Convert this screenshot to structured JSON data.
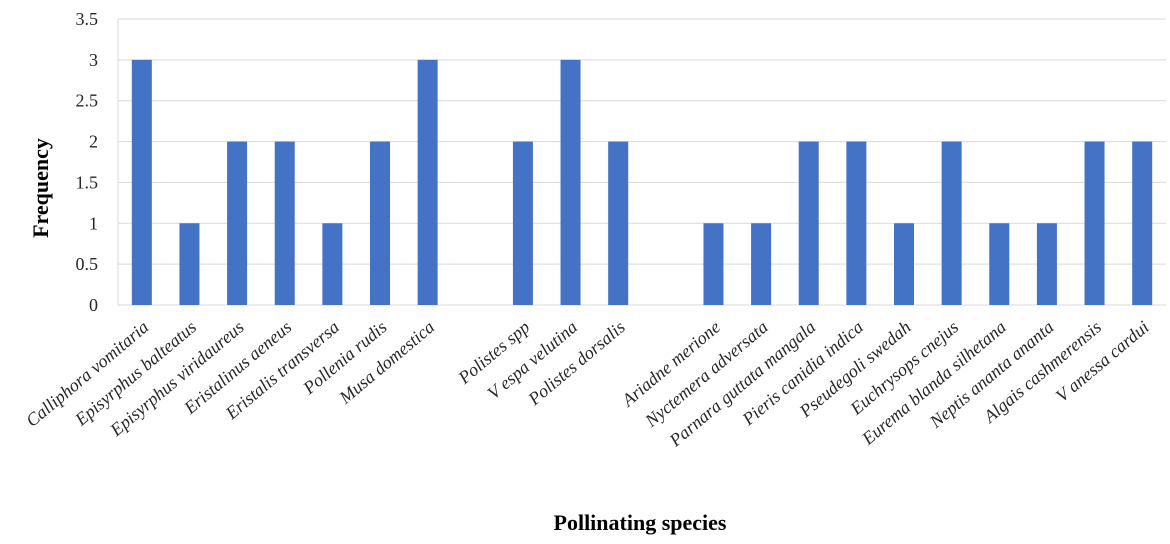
{
  "chart_data": {
    "type": "bar",
    "title": "",
    "xlabel": "Pollinating species",
    "ylabel": "Frequency",
    "ylim": [
      0,
      3.5
    ],
    "yticks": [
      "0",
      "0.5",
      "1",
      "1.5",
      "2",
      "2.5",
      "3",
      "3.5"
    ],
    "grid": true,
    "legend": "none",
    "bar_color": "#4472C4",
    "categories": [
      "Calliphora vomitaria",
      "Episyrphus balteatus",
      "Episyrphus viridaureus",
      "Eristalinus aeneus",
      "Eristalis transversa",
      "Pollenia rudis",
      "Musa domestica",
      "",
      "Polistes spp",
      "V espa velutina",
      "Polistes dorsalis",
      "",
      "Ariadne merione",
      "Nyctemera adversata",
      "Parnara guttata mangala",
      "Pieris canidia indica",
      "Pseudegoli swedah",
      "Euchrysops cnejus",
      "Eurema blanda silhetana",
      "Neptis ananta ananta",
      "Algais cashmerensis",
      "V anessa cardui"
    ],
    "values": [
      3,
      1,
      2,
      2,
      1,
      2,
      3,
      null,
      2,
      3,
      2,
      null,
      1,
      1,
      2,
      2,
      1,
      2,
      1,
      1,
      2,
      2
    ]
  }
}
